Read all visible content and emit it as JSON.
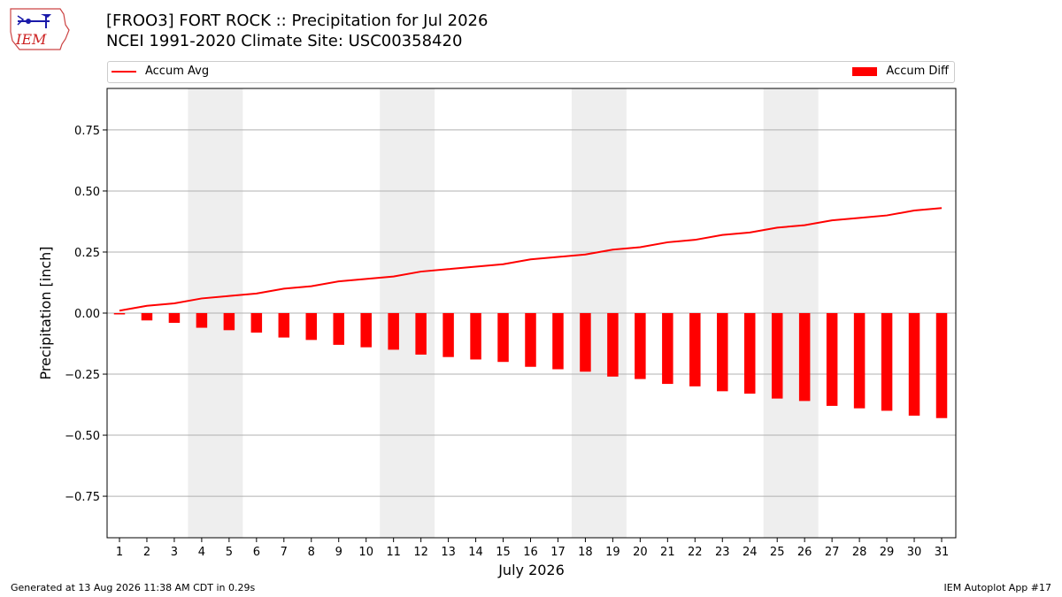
{
  "header": {
    "title_line1": "[FROO3] FORT ROCK :: Precipitation for Jul 2026",
    "title_line2": "NCEI 1991-2020 Climate Site: USC00358420"
  },
  "logo": {
    "text": "IEM"
  },
  "footer": {
    "generated": "Generated at 13 Aug 2026 11:38 AM CDT in 0.29s",
    "app": "IEM Autoplot App #17"
  },
  "colors": {
    "series": "#ff0000",
    "weekend_shade": "#eeeeee",
    "grid": "#b0b0b0"
  },
  "chart_data": {
    "type": "bar",
    "title": "[FROO3] FORT ROCK :: Precipitation for Jul 2026",
    "subtitle": "NCEI 1991-2020 Climate Site: USC00358420",
    "xlabel": "July 2026",
    "ylabel": "Precipitation [inch]",
    "ylim": [
      -0.92,
      0.92
    ],
    "yticks": [
      -0.75,
      -0.5,
      -0.25,
      0.0,
      0.25,
      0.5,
      0.75
    ],
    "ytick_labels": [
      "−0.75",
      "−0.50",
      "−0.25",
      "0.00",
      "0.25",
      "0.50",
      "0.75"
    ],
    "categories": [
      "1",
      "2",
      "3",
      "4",
      "5",
      "6",
      "7",
      "8",
      "9",
      "10",
      "11",
      "12",
      "13",
      "14",
      "15",
      "16",
      "17",
      "18",
      "19",
      "20",
      "21",
      "22",
      "23",
      "24",
      "25",
      "26",
      "27",
      "28",
      "29",
      "30",
      "31"
    ],
    "grid": "horizontal",
    "legend_position": "top",
    "shaded_days": [
      [
        4,
        5
      ],
      [
        11,
        12
      ],
      [
        18,
        19
      ],
      [
        25,
        26
      ]
    ],
    "series": [
      {
        "name": "Accum Avg",
        "type": "line",
        "values": [
          0.01,
          0.03,
          0.04,
          0.06,
          0.07,
          0.08,
          0.1,
          0.11,
          0.13,
          0.14,
          0.15,
          0.17,
          0.18,
          0.19,
          0.2,
          0.22,
          0.23,
          0.24,
          0.26,
          0.27,
          0.29,
          0.3,
          0.32,
          0.33,
          0.35,
          0.36,
          0.38,
          0.39,
          0.4,
          0.42,
          0.43
        ]
      },
      {
        "name": "Accum Diff",
        "type": "bar",
        "values": [
          -0.005,
          -0.03,
          -0.04,
          -0.06,
          -0.07,
          -0.08,
          -0.1,
          -0.11,
          -0.13,
          -0.14,
          -0.15,
          -0.17,
          -0.18,
          -0.19,
          -0.2,
          -0.22,
          -0.23,
          -0.24,
          -0.26,
          -0.27,
          -0.29,
          -0.3,
          -0.32,
          -0.33,
          -0.35,
          -0.36,
          -0.38,
          -0.39,
          -0.4,
          -0.42,
          -0.43
        ]
      }
    ]
  }
}
